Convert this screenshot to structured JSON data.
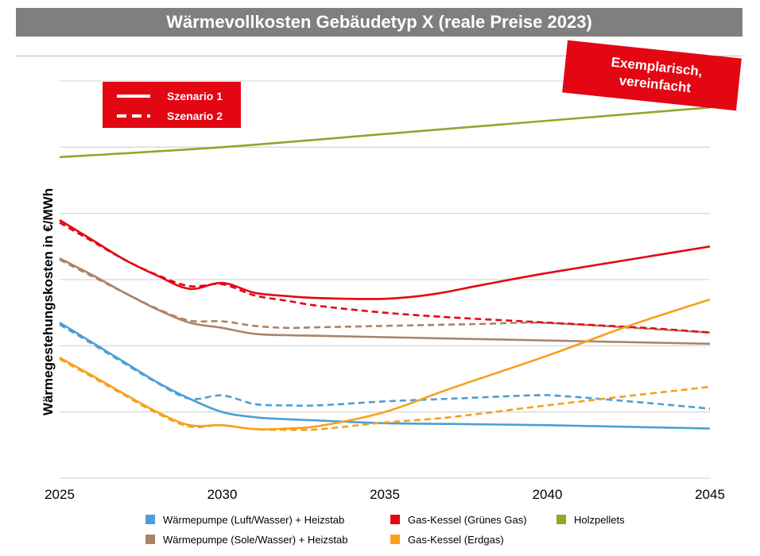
{
  "chart_data": {
    "type": "line",
    "title": "Wärmevollkosten Gebäudetyp X (reale Preise 2023)",
    "ylabel": "Wärmegestehungskosten in €/MWh",
    "xlabel": "",
    "x_ticks": [
      "2025",
      "2030",
      "2035",
      "2040",
      "2045"
    ],
    "xlim": [
      2025,
      2045
    ],
    "ylim": [
      0,
      6
    ],
    "y_grid": true,
    "y_tick_labels_shown": false,
    "stamp": "Exemplarisch, vereinfacht",
    "scenario_legend": {
      "solid": "Szenario 1",
      "dashed": "Szenario 2"
    },
    "legend_position": "bottom",
    "series": [
      {
        "name": "Wärmepumpe (Luft/Wasser) + Heizstab",
        "color": "#4a9fd8",
        "dash": false,
        "points": [
          [
            2025,
            2.35
          ],
          [
            2026,
            2.05
          ],
          [
            2027,
            1.75
          ],
          [
            2028,
            1.45
          ],
          [
            2029,
            1.2
          ],
          [
            2030,
            1.0
          ],
          [
            2031,
            0.92
          ],
          [
            2032,
            0.89
          ],
          [
            2033,
            0.87
          ],
          [
            2035,
            0.83
          ],
          [
            2037,
            0.82
          ],
          [
            2040,
            0.8
          ],
          [
            2045,
            0.75
          ]
        ]
      },
      {
        "name": "Wärmepumpe (Luft/Wasser) + Heizstab",
        "color": "#4a9fd8",
        "dash": true,
        "points": [
          [
            2025,
            2.32
          ],
          [
            2026,
            2.03
          ],
          [
            2027,
            1.73
          ],
          [
            2028,
            1.44
          ],
          [
            2029,
            1.2
          ],
          [
            2030,
            1.25
          ],
          [
            2031,
            1.12
          ],
          [
            2032,
            1.1
          ],
          [
            2033,
            1.1
          ],
          [
            2035,
            1.16
          ],
          [
            2037,
            1.2
          ],
          [
            2039.5,
            1.25
          ],
          [
            2040.5,
            1.24
          ],
          [
            2043,
            1.14
          ],
          [
            2045,
            1.05
          ]
        ]
      },
      {
        "name": "Wärmepumpe (Sole/Wasser) + Heizstab",
        "color": "#aa8369",
        "dash": false,
        "points": [
          [
            2025,
            3.32
          ],
          [
            2026,
            3.07
          ],
          [
            2027,
            2.8
          ],
          [
            2028,
            2.55
          ],
          [
            2029,
            2.35
          ],
          [
            2030,
            2.27
          ],
          [
            2031,
            2.18
          ],
          [
            2032,
            2.16
          ],
          [
            2033,
            2.15
          ],
          [
            2035,
            2.13
          ],
          [
            2038,
            2.1
          ],
          [
            2041,
            2.07
          ],
          [
            2045,
            2.03
          ]
        ]
      },
      {
        "name": "Wärmepumpe (Sole/Wasser) + Heizstab",
        "color": "#aa8369",
        "dash": true,
        "points": [
          [
            2025,
            3.3
          ],
          [
            2026,
            3.05
          ],
          [
            2027,
            2.8
          ],
          [
            2028,
            2.56
          ],
          [
            2029,
            2.38
          ],
          [
            2030,
            2.37
          ],
          [
            2031,
            2.3
          ],
          [
            2032,
            2.27
          ],
          [
            2033,
            2.28
          ],
          [
            2035,
            2.3
          ],
          [
            2038,
            2.33
          ],
          [
            2039.5,
            2.35
          ],
          [
            2041,
            2.32
          ],
          [
            2043,
            2.26
          ],
          [
            2045,
            2.2
          ]
        ]
      },
      {
        "name": "Gas-Kessel (Grünes Gas)",
        "color": "#e30613",
        "dash": false,
        "points": [
          [
            2025,
            3.9
          ],
          [
            2026,
            3.6
          ],
          [
            2027,
            3.3
          ],
          [
            2028,
            3.06
          ],
          [
            2029,
            2.86
          ],
          [
            2030,
            2.95
          ],
          [
            2031,
            2.8
          ],
          [
            2032,
            2.75
          ],
          [
            2033,
            2.72
          ],
          [
            2035,
            2.71
          ],
          [
            2036.5,
            2.78
          ],
          [
            2038,
            2.92
          ],
          [
            2040,
            3.1
          ],
          [
            2042.5,
            3.3
          ],
          [
            2045,
            3.5
          ]
        ]
      },
      {
        "name": "Gas-Kessel (Grünes Gas)",
        "color": "#e30613",
        "dash": true,
        "points": [
          [
            2025,
            3.86
          ],
          [
            2026,
            3.58
          ],
          [
            2027,
            3.3
          ],
          [
            2028,
            3.07
          ],
          [
            2029,
            2.9
          ],
          [
            2030,
            2.93
          ],
          [
            2031,
            2.76
          ],
          [
            2032,
            2.68
          ],
          [
            2033,
            2.6
          ],
          [
            2035,
            2.5
          ],
          [
            2037,
            2.43
          ],
          [
            2040,
            2.35
          ],
          [
            2043,
            2.27
          ],
          [
            2045,
            2.2
          ]
        ]
      },
      {
        "name": "Gas-Kessel (Erdgas)",
        "color": "#f7a01d",
        "dash": false,
        "points": [
          [
            2025,
            1.82
          ],
          [
            2026,
            1.55
          ],
          [
            2027,
            1.27
          ],
          [
            2028,
            1.0
          ],
          [
            2029,
            0.8
          ],
          [
            2030,
            0.8
          ],
          [
            2031,
            0.74
          ],
          [
            2032,
            0.75
          ],
          [
            2033,
            0.79
          ],
          [
            2035,
            1.0
          ],
          [
            2037,
            1.35
          ],
          [
            2040,
            1.85
          ],
          [
            2042.5,
            2.3
          ],
          [
            2045,
            2.7
          ]
        ]
      },
      {
        "name": "Gas-Kessel (Erdgas)",
        "color": "#f7a01d",
        "dash": true,
        "points": [
          [
            2025,
            1.8
          ],
          [
            2026,
            1.53
          ],
          [
            2027,
            1.25
          ],
          [
            2028,
            0.98
          ],
          [
            2029,
            0.78
          ],
          [
            2030,
            0.8
          ],
          [
            2031,
            0.74
          ],
          [
            2032,
            0.73
          ],
          [
            2033,
            0.74
          ],
          [
            2035,
            0.84
          ],
          [
            2037,
            0.92
          ],
          [
            2040,
            1.1
          ],
          [
            2043,
            1.27
          ],
          [
            2045,
            1.38
          ]
        ]
      },
      {
        "name": "Holzpellets",
        "color": "#8fa82b",
        "dash": false,
        "points": [
          [
            2025,
            4.85
          ],
          [
            2030,
            5.0
          ],
          [
            2035,
            5.2
          ],
          [
            2040,
            5.4
          ],
          [
            2045,
            5.6
          ]
        ]
      }
    ],
    "legend": [
      {
        "label": "Wärmepumpe (Luft/Wasser) + Heizstab",
        "color": "#4a9fd8"
      },
      {
        "label": "Gas-Kessel (Grünes Gas)",
        "color": "#e30613"
      },
      {
        "label": "Holzpellets",
        "color": "#8fa82b"
      },
      {
        "label": "Wärmepumpe (Sole/Wasser) + Heizstab",
        "color": "#aa8369"
      },
      {
        "label": "Gas-Kessel (Erdgas)",
        "color": "#f7a01d"
      }
    ]
  }
}
